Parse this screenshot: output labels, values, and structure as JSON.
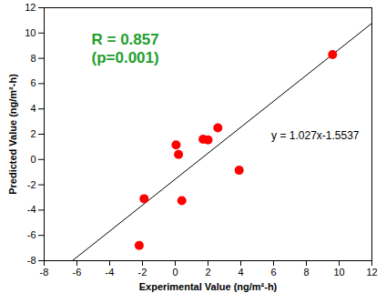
{
  "chart_data": {
    "type": "scatter",
    "x_label": "Experimental Value (ng/m²-h)",
    "y_label": "Predicted Value (ng/m²-h)",
    "x": [
      9.6,
      3.9,
      2.6,
      2.0,
      1.7,
      0.2,
      0.05,
      0.4,
      -1.9,
      -2.2
    ],
    "values": [
      8.3,
      -0.85,
      2.5,
      1.55,
      1.6,
      0.4,
      1.15,
      -3.25,
      -3.1,
      -6.8
    ],
    "color": "#ff0000",
    "marker": "circle",
    "xlim": [
      -8,
      12
    ],
    "xticks": [
      -8,
      -6,
      -4,
      -2,
      0,
      2,
      4,
      6,
      8,
      10,
      12
    ],
    "ylim": [
      -8,
      12
    ],
    "yticks": [
      -8,
      -6,
      -4,
      -2,
      0,
      2,
      4,
      6,
      8,
      10,
      12
    ],
    "grid": false,
    "trendline": {
      "slope": 1.027,
      "intercept": -1.5537,
      "label": "y = 1.027x-1.5537",
      "color": "#000000"
    },
    "annotations": [
      {
        "text": "R = 0.857",
        "color": "#22a02e"
      },
      {
        "text": "(p=0.001)",
        "color": "#22a02e"
      }
    ]
  }
}
